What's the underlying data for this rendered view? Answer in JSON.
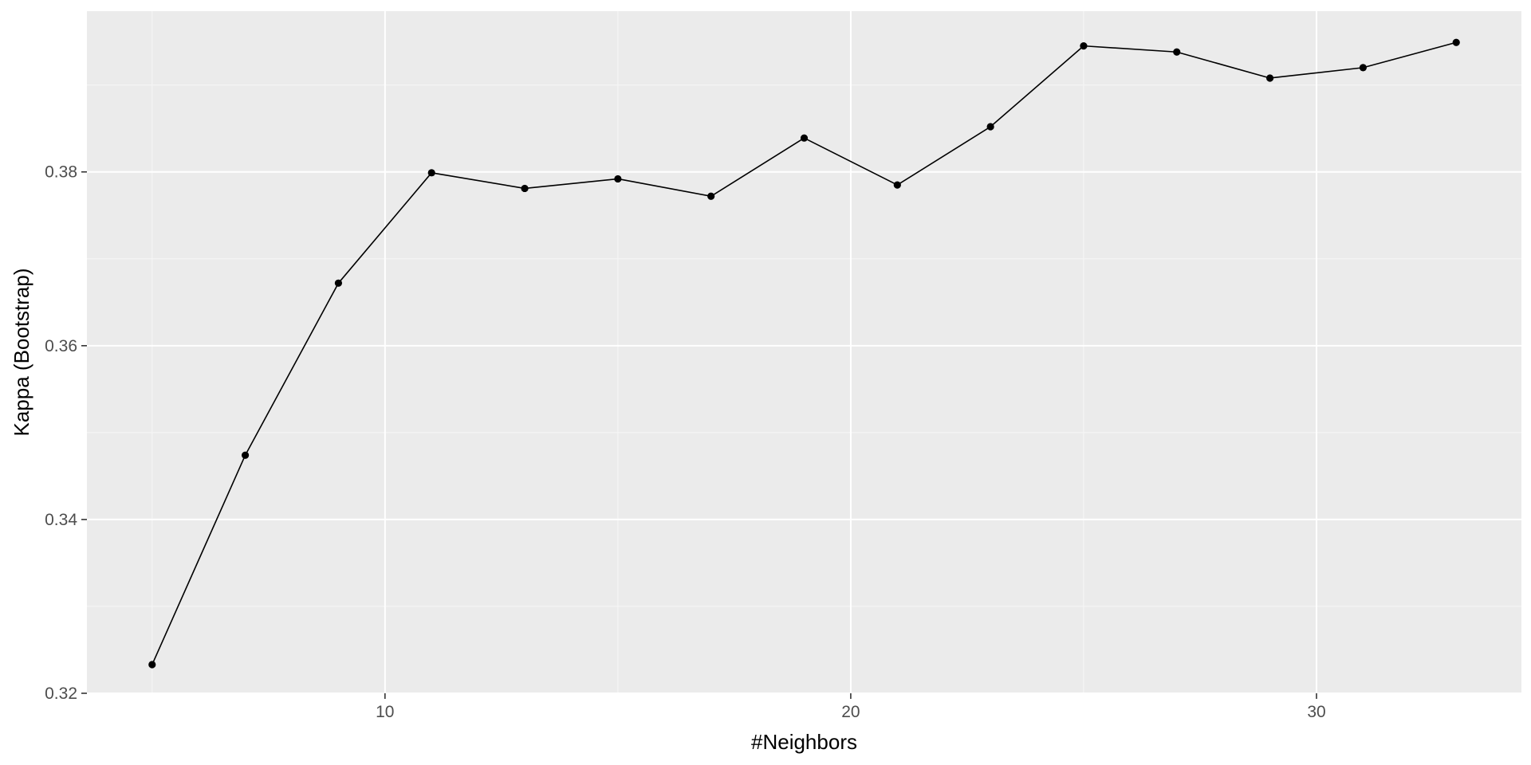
{
  "chart_data": {
    "type": "line",
    "title": "",
    "xlabel": "#Neighbors",
    "ylabel": "Kappa (Bootstrap)",
    "xlim": [
      3.6,
      34.4
    ],
    "ylim": [
      0.32,
      0.3985
    ],
    "x_ticks": [
      10,
      20,
      30
    ],
    "x_tick_labels": [
      "10",
      "20",
      "30"
    ],
    "y_ticks": [
      0.32,
      0.34,
      0.36,
      0.38
    ],
    "y_tick_labels": [
      "0.32",
      "0.34",
      "0.36",
      "0.38"
    ],
    "grid": true,
    "legend": "none",
    "series": [
      {
        "x": [
          5,
          7,
          9,
          11,
          13,
          15,
          17,
          19,
          21,
          23,
          25,
          27,
          29,
          31,
          33
        ],
        "y": [
          0.3233,
          0.3474,
          0.3672,
          0.3799,
          0.3781,
          0.3792,
          0.3772,
          0.3839,
          0.3785,
          0.3852,
          0.3945,
          0.3938,
          0.3908,
          0.392,
          0.3949
        ]
      }
    ],
    "colors": {
      "panel_background": "#EBEBEB",
      "grid_major": "#FFFFFF",
      "grid_minor": "#F5F5F5",
      "line": "#000000",
      "point": "#000000",
      "tick_text": "#4D4D4D",
      "tick_mark": "#333333",
      "axis_title": "#000000"
    }
  }
}
